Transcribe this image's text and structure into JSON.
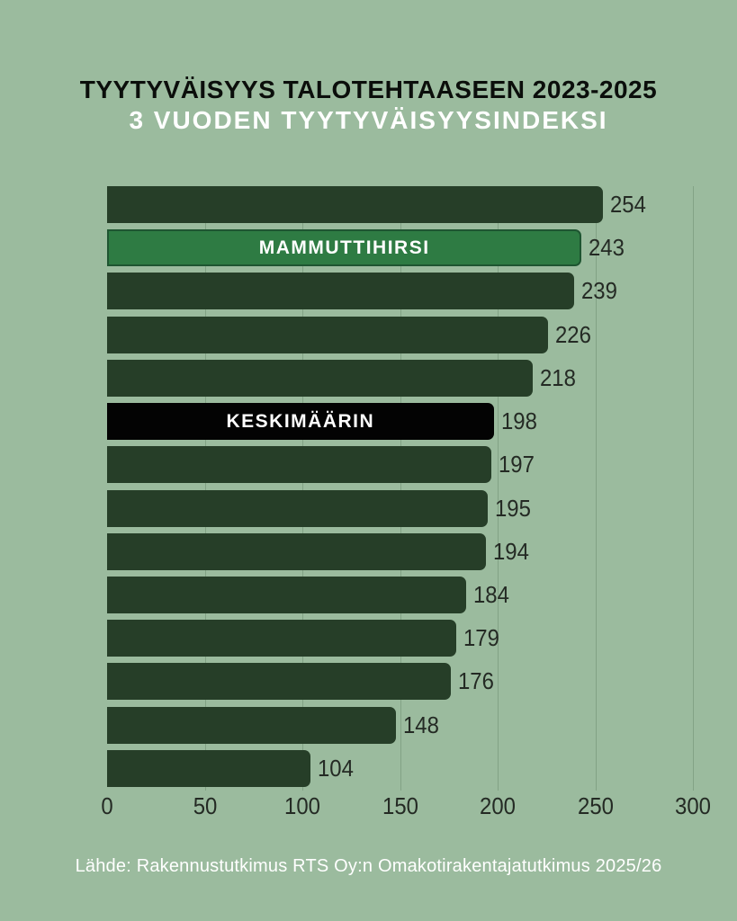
{
  "header": {
    "title": "TYYTYVÄISYYS TALOTEHTAASEEN 2023-2025",
    "subtitle": "3 VUODEN TYYTYVÄISYYSINDEKSI"
  },
  "footer": {
    "text": "Lähde: Rakennustutkimus RTS Oy:n Omakotirakentajatutkimus 2025/26"
  },
  "chart_data": {
    "type": "bar",
    "orientation": "horizontal",
    "title": "TYYTYVÄISYYS TALOTEHTAASEEN 2023-2025",
    "subtitle": "3 VUODEN TYYTYVÄISYYSINDEKSI",
    "xlim": [
      0,
      300
    ],
    "x_ticks": [
      "0",
      "50",
      "100",
      "150",
      "200",
      "250",
      "300"
    ],
    "grid": "vertical",
    "legend": "none",
    "bars": [
      {
        "value": 254,
        "label": "",
        "variant": "default"
      },
      {
        "value": 243,
        "label": "MAMMUTTIHIRSI",
        "variant": "highlight"
      },
      {
        "value": 239,
        "label": "",
        "variant": "default"
      },
      {
        "value": 226,
        "label": "",
        "variant": "default"
      },
      {
        "value": 218,
        "label": "",
        "variant": "default"
      },
      {
        "value": 198,
        "label": "KESKIMÄÄRIN",
        "variant": "average"
      },
      {
        "value": 197,
        "label": "",
        "variant": "default"
      },
      {
        "value": 195,
        "label": "",
        "variant": "default"
      },
      {
        "value": 194,
        "label": "",
        "variant": "default"
      },
      {
        "value": 184,
        "label": "",
        "variant": "default"
      },
      {
        "value": 179,
        "label": "",
        "variant": "default"
      },
      {
        "value": 176,
        "label": "",
        "variant": "default"
      },
      {
        "value": 148,
        "label": "",
        "variant": "default"
      },
      {
        "value": 104,
        "label": "",
        "variant": "default"
      }
    ],
    "colors": {
      "background": "#9bbb9e",
      "default": "#263e28",
      "highlight": "#2e7b43",
      "highlight_border": "#1e5531",
      "average": "#030303",
      "gridline": "#82a285",
      "value_text": "#242a24",
      "title_text": "#0b0e0b",
      "subtitle_text": "#ffffff",
      "footer_text": "#ffffff"
    }
  }
}
